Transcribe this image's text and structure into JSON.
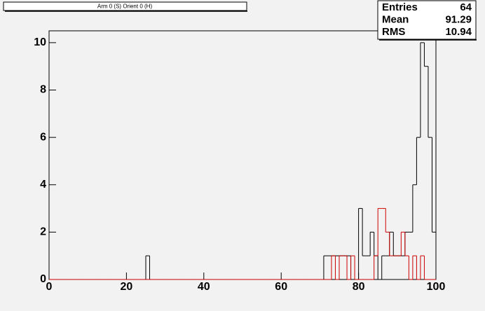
{
  "chart_data": {
    "type": "histogram",
    "title": "Arm 0 (S) Orient 0 (H)",
    "bins": [
      0,
      1,
      2,
      3,
      4,
      5,
      6,
      7,
      8,
      9,
      10,
      11,
      12,
      13,
      14,
      15,
      16,
      17,
      18,
      19,
      20,
      21,
      22,
      23,
      24,
      25,
      26,
      27,
      28,
      29,
      30,
      31,
      32,
      33,
      34,
      35,
      36,
      37,
      38,
      39,
      40,
      41,
      42,
      43,
      44,
      45,
      46,
      47,
      48,
      49,
      50,
      51,
      52,
      53,
      54,
      55,
      56,
      57,
      58,
      59,
      60,
      61,
      62,
      63,
      64,
      65,
      66,
      67,
      68,
      69,
      70,
      71,
      72,
      73,
      74,
      75,
      76,
      77,
      78,
      79,
      80,
      81,
      82,
      83,
      84,
      85,
      86,
      87,
      88,
      89,
      90,
      91,
      92,
      93,
      94,
      95,
      96,
      97,
      98,
      99,
      100
    ],
    "series": [
      {
        "color": "#000000",
        "values": [
          0,
          0,
          0,
          0,
          0,
          0,
          0,
          0,
          0,
          0,
          0,
          0,
          0,
          0,
          0,
          0,
          0,
          0,
          0,
          0,
          0,
          0,
          0,
          0,
          0,
          1,
          0,
          0,
          0,
          0,
          0,
          0,
          0,
          0,
          0,
          0,
          0,
          0,
          0,
          0,
          0,
          0,
          0,
          0,
          0,
          0,
          0,
          0,
          0,
          0,
          0,
          0,
          0,
          0,
          0,
          0,
          0,
          0,
          0,
          0,
          0,
          0,
          0,
          0,
          0,
          0,
          0,
          0,
          0,
          0,
          0,
          1,
          1,
          1,
          1,
          1,
          1,
          1,
          0,
          0,
          3,
          1,
          1,
          2,
          1,
          0,
          1,
          1,
          2,
          1,
          1,
          1,
          2,
          2,
          4,
          6,
          10,
          9,
          6,
          2
        ]
      },
      {
        "color": "#cc0000",
        "values": [
          0,
          0,
          0,
          0,
          0,
          0,
          0,
          0,
          0,
          0,
          0,
          0,
          0,
          0,
          0,
          0,
          0,
          0,
          0,
          0,
          0,
          0,
          0,
          0,
          0,
          0,
          0,
          0,
          0,
          0,
          0,
          0,
          0,
          0,
          0,
          0,
          0,
          0,
          0,
          0,
          0,
          0,
          0,
          0,
          0,
          0,
          0,
          0,
          0,
          0,
          0,
          0,
          0,
          0,
          0,
          0,
          0,
          0,
          0,
          0,
          0,
          0,
          0,
          0,
          0,
          0,
          0,
          0,
          0,
          0,
          0,
          0,
          0,
          1,
          0,
          1,
          1,
          0,
          1,
          0,
          0,
          0,
          0,
          0,
          1,
          3,
          3,
          2,
          1,
          1,
          1,
          2,
          1,
          0,
          1,
          0,
          1,
          0,
          0,
          0
        ]
      }
    ],
    "xlim": [
      0,
      100
    ],
    "xticks": [
      0,
      20,
      40,
      60,
      80,
      100
    ],
    "ylim": [
      0,
      10.5
    ],
    "yticks": [
      0,
      2,
      4,
      6,
      8,
      10
    ],
    "stats": [
      {
        "label": "Entries",
        "value": 64
      },
      {
        "label": "Mean",
        "value": 91.29
      },
      {
        "label": "RMS",
        "value": 10.94
      }
    ]
  }
}
